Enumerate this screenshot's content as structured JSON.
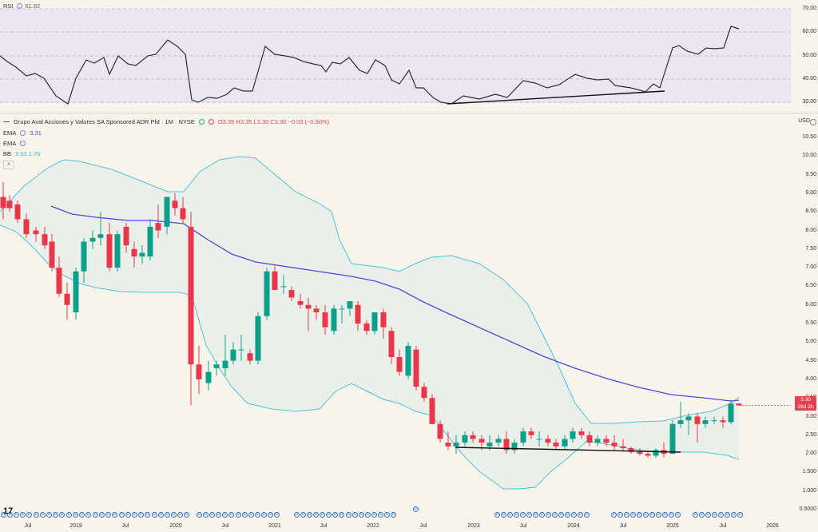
{
  "rsi": {
    "name": "RSI",
    "value": "61.62",
    "levels": [
      "70.00",
      "60.00",
      "50.00",
      "40.00",
      "30.00"
    ]
  },
  "legend": {
    "title": "Grupo Aval Acciones y Valores SA Sponsored ADR Pfd · 1M · NYSE",
    "ohlc": "O3.35 H3.35 L3.30 C3.30 −0.03 (−0.90%)",
    "ema1_label": "EMA",
    "ema1_value": "3.31",
    "ema2_label": "EMA",
    "bb_label": "BB",
    "bb_value": "3.32  1.70"
  },
  "currency": "USD",
  "price_axis": [
    "10.50",
    "10.00",
    "9.50",
    "9.00",
    "8.50",
    "8.00",
    "7.50",
    "7.00",
    "6.50",
    "6.00",
    "5.50",
    "5.00",
    "4.50",
    "4.00",
    "3.50",
    "3.00",
    "2.50",
    "2.00",
    "1.500",
    "1.000",
    "0.5000"
  ],
  "price_tag": {
    "price": "3.30",
    "countdown": "28d 2h"
  },
  "time_axis": [
    "Jul",
    "2019",
    "Jul",
    "2020",
    "Jul",
    "2021",
    "Jul",
    "2022",
    "Jul",
    "2023",
    "Jul",
    "2024",
    "Jul",
    "2025",
    "Jul",
    "2026"
  ],
  "dividend_marker": "D",
  "colors": {
    "up": "#0e9f8a",
    "down": "#e8374a",
    "ema": "#5046e5",
    "bb": "#4fc3d4",
    "bb_fill": "#e6efe9",
    "rsi_line": "#2a2e39",
    "trendline": "#111111"
  }
}
